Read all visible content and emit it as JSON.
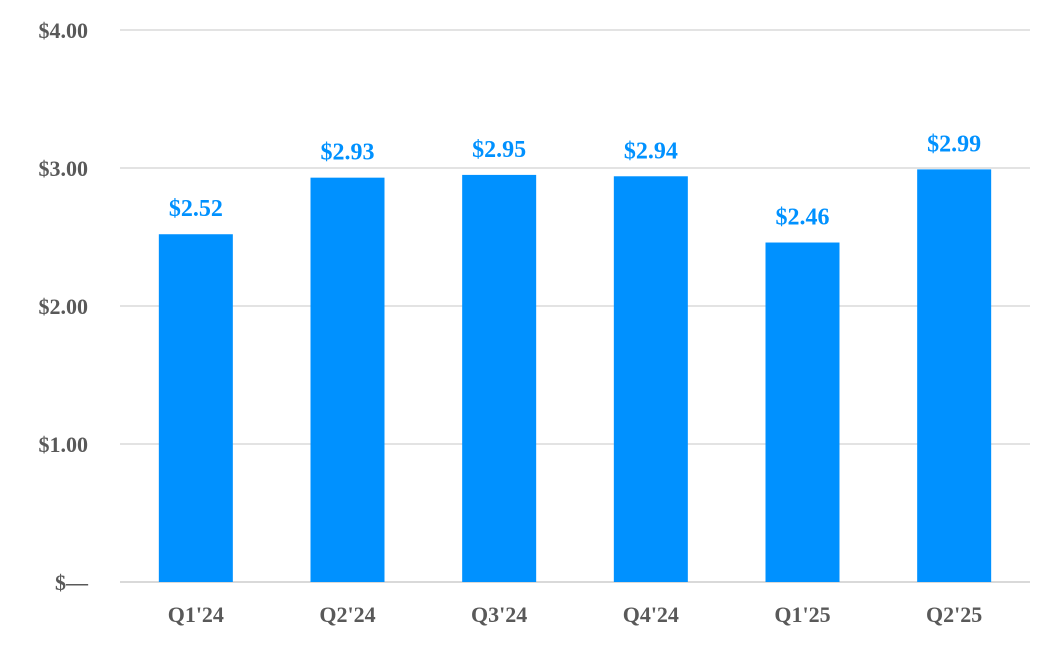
{
  "chart_data": {
    "type": "bar",
    "categories": [
      "Q1'24",
      "Q2'24",
      "Q3'24",
      "Q4'24",
      "Q1'25",
      "Q2'25"
    ],
    "values": [
      2.52,
      2.93,
      2.95,
      2.94,
      2.46,
      2.99
    ],
    "data_labels": [
      "$2.52",
      "$2.93",
      "$2.95",
      "$2.94",
      "$2.46",
      "$2.99"
    ],
    "ylim": [
      0,
      4
    ],
    "yticks": [
      0,
      1,
      2,
      3,
      4
    ],
    "ytick_labels": [
      "$—",
      "$1.00",
      "$2.00",
      "$3.00",
      "$4.00"
    ],
    "grid": true,
    "legend": "none",
    "colors": {
      "bar": "#0091ff",
      "data_label": "#0091ff",
      "tick_label": "#595959",
      "grid": "#e3e3e3"
    }
  }
}
